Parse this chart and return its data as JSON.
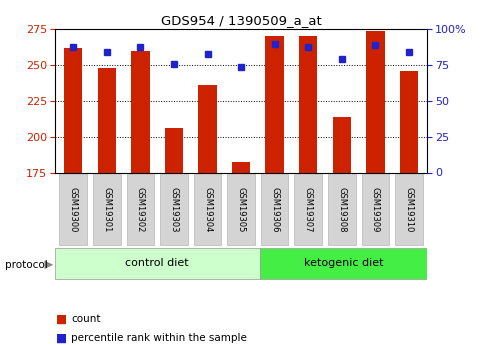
{
  "title": "GDS954 / 1390509_a_at",
  "samples": [
    "GSM19300",
    "GSM19301",
    "GSM19302",
    "GSM19303",
    "GSM19304",
    "GSM19305",
    "GSM19306",
    "GSM19307",
    "GSM19308",
    "GSM19309",
    "GSM19310"
  ],
  "counts": [
    262,
    248,
    260,
    206,
    236,
    182,
    270,
    270,
    214,
    274,
    246
  ],
  "percentile_ranks": [
    88,
    84,
    88,
    76,
    83,
    74,
    90,
    88,
    79,
    89,
    84
  ],
  "ylim_left": [
    175,
    275
  ],
  "ylim_right": [
    0,
    100
  ],
  "yticks_left": [
    175,
    200,
    225,
    250,
    275
  ],
  "yticks_right": [
    0,
    25,
    50,
    75,
    100
  ],
  "bar_color": "#cc2200",
  "dot_color": "#2222cc",
  "control_diet_color": "#ccffcc",
  "ketogenic_diet_color": "#44ee44",
  "n_control": 6,
  "n_ketogenic": 5,
  "count_base": 175
}
